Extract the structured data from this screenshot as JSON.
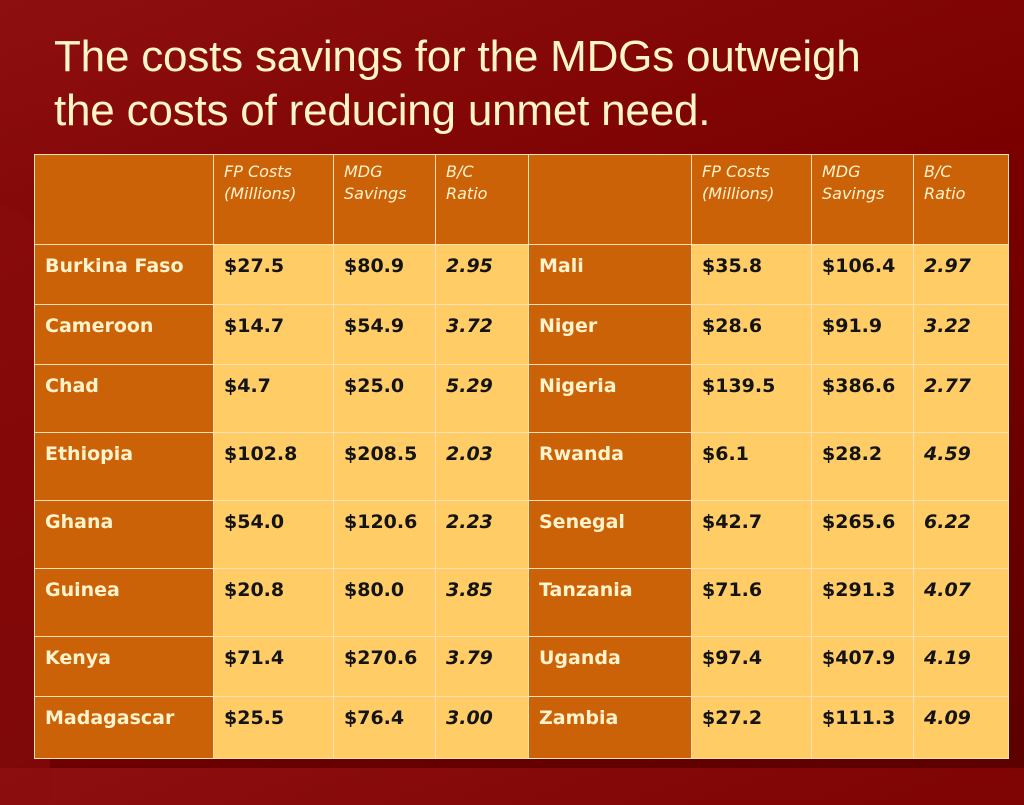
{
  "title": {
    "line1": "The costs savings for the MDGs outweigh",
    "line2": "the costs of reducing unmet need."
  },
  "table": {
    "headers": {
      "fp_costs_line1": "FP Costs",
      "fp_costs_line2": "(Millions)",
      "mdg_savings": "MDG Savings",
      "bc_ratio": "B/C Ratio"
    },
    "rows": [
      {
        "left": {
          "country": "Burkina Faso",
          "fp": "$27.5",
          "mdg": "$80.9",
          "ratio": "2.95"
        },
        "right": {
          "country": "Mali",
          "fp": "$35.8",
          "mdg": "$106.4",
          "ratio": "2.97"
        }
      },
      {
        "left": {
          "country": "Cameroon",
          "fp": "$14.7",
          "mdg": "$54.9",
          "ratio": "3.72"
        },
        "right": {
          "country": "Niger",
          "fp": "$28.6",
          "mdg": "$91.9",
          "ratio": "3.22"
        }
      },
      {
        "left": {
          "country": "Chad",
          "fp": "$4.7",
          "mdg": "$25.0",
          "ratio": "5.29"
        },
        "right": {
          "country": "Nigeria",
          "fp": "$139.5",
          "mdg": "$386.6",
          "ratio": "2.77"
        }
      },
      {
        "left": {
          "country": "Ethiopia",
          "fp": "$102.8",
          "mdg": "$208.5",
          "ratio": "2.03"
        },
        "right": {
          "country": "Rwanda",
          "fp": "$6.1",
          "mdg": "$28.2",
          "ratio": "4.59"
        }
      },
      {
        "left": {
          "country": "Ghana",
          "fp": "$54.0",
          "mdg": "$120.6",
          "ratio": "2.23"
        },
        "right": {
          "country": "Senegal",
          "fp": "$42.7",
          "mdg": "$265.6",
          "ratio": "6.22"
        }
      },
      {
        "left": {
          "country": "Guinea",
          "fp": "$20.8",
          "mdg": "$80.0",
          "ratio": "3.85"
        },
        "right": {
          "country": "Tanzania",
          "fp": "$71.6",
          "mdg": "$291.3",
          "ratio": "4.07"
        }
      },
      {
        "left": {
          "country": "Kenya",
          "fp": "$71.4",
          "mdg": "$270.6",
          "ratio": "3.79"
        },
        "right": {
          "country": "Uganda",
          "fp": "$97.4",
          "mdg": "$407.9",
          "ratio": "4.19"
        }
      },
      {
        "left": {
          "country": "Madagascar",
          "fp": "$25.5",
          "mdg": "$76.4",
          "ratio": "3.00"
        },
        "right": {
          "country": "Zambia",
          "fp": "$27.2",
          "mdg": "$111.3",
          "ratio": "4.09"
        }
      }
    ]
  },
  "colors": {
    "background": "#7a0000",
    "title_text": "#fff6c8",
    "country_cell": "#cc6208",
    "value_cell": "#ffcc66"
  }
}
